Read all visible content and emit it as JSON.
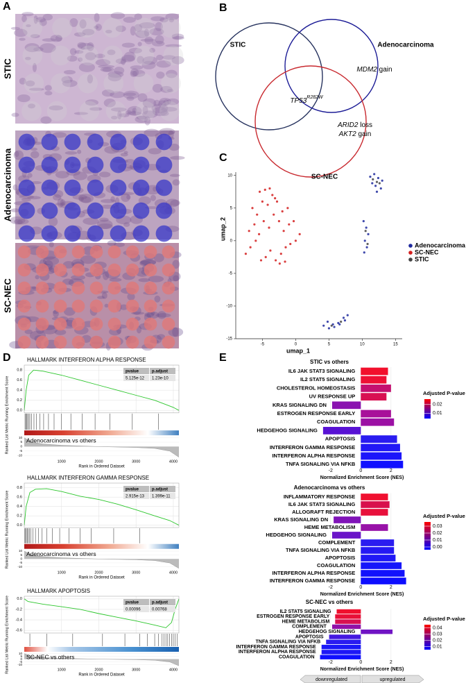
{
  "panel_labels": {
    "a": "A",
    "b": "B",
    "c": "C",
    "d": "D",
    "e": "E"
  },
  "histology": [
    "STIC",
    "Adenocarcinoma",
    "SC-NEC"
  ],
  "venn": {
    "sets": [
      {
        "name": "STIC",
        "color": "#26325e"
      },
      {
        "name": "Adenocarcinoma",
        "color": "#1c1c96"
      },
      {
        "name": "SC-NEC",
        "color": "#c8282e"
      }
    ],
    "labels": [
      {
        "gene": "MDM2",
        "event": "gain"
      },
      {
        "gene": "TP53",
        "sup": "R282W"
      },
      {
        "gene": "ARID2",
        "event": "loss"
      },
      {
        "gene": "AKT2",
        "event": "gain"
      }
    ]
  },
  "chart_data": [
    {
      "type": "scatter",
      "xlabel": "umap_1",
      "ylabel": "umap_2",
      "xlim": [
        -9,
        16
      ],
      "ylim": [
        -15,
        10.5
      ],
      "xticks": [
        -5,
        0,
        5,
        10,
        15
      ],
      "yticks": [
        -15,
        -10,
        -5,
        0,
        5,
        10
      ],
      "legend": "right",
      "series": [
        {
          "name": "Adenocarcinoma",
          "color": "#1f2a9e",
          "x": [
            11.2,
            11.8,
            12.4,
            13,
            12,
            11.5,
            12.8,
            12.2,
            10.2,
            10.6,
            10.9,
            10.4,
            10.7,
            10.3,
            4.2,
            5,
            5.8,
            6.6,
            7.4,
            7.8,
            4.8,
            5.6,
            6.4,
            7.2
          ],
          "values": [
            9.8,
            10.2,
            9.6,
            9.2,
            8.4,
            8.8,
            8,
            7.5,
            3,
            2,
            1,
            0,
            -1,
            -1.8,
            -13,
            -13.4,
            -13.2,
            -12.8,
            -12.2,
            -11.4,
            -12.4,
            -12.8,
            -12.6,
            -11.8
          ]
        },
        {
          "name": "SC-NEC",
          "color": "#d42020",
          "x": [
            -7.5,
            -6.8,
            -6,
            -5.2,
            -4.5,
            -3.8,
            -3,
            -2.2,
            -1.5,
            -0.8,
            0,
            0.6,
            -7,
            -6.2,
            -5.5,
            -4.8,
            -4,
            -3.3,
            -2.5,
            -1.8,
            -1,
            -0.3,
            -6.5,
            -5.8,
            -5,
            -4.2,
            -3.5,
            -2.8,
            -2,
            -1.2,
            -4.6,
            -3.9,
            -3.1,
            -5.4,
            -2.4,
            -1.6
          ],
          "values": [
            -2,
            -1,
            0,
            -3,
            -2.5,
            -1.5,
            -3,
            -2,
            -1,
            -0.5,
            0,
            1,
            1.5,
            2.5,
            1,
            3,
            2,
            4,
            3,
            1.5,
            2.5,
            3,
            5,
            4,
            6,
            5.5,
            7,
            6,
            4.5,
            5,
            7.8,
            8,
            6.5,
            7.5,
            -3.5,
            -3.2
          ]
        },
        {
          "name": "STIC",
          "color": "#444444",
          "x": [
            11.6,
            12.6,
            10.5,
            10.8,
            5.4,
            6.8,
            12.2
          ],
          "values": [
            9.4,
            8.8,
            1.5,
            -0.5,
            -13,
            -12.4,
            9
          ]
        }
      ]
    },
    {
      "type": "gsea",
      "title": "HALLMARK INTERFERON ALPHA RESPONSE",
      "annotation": "Adenocarcinoma vs others",
      "xlabel": "Rank in Ordered Dataset",
      "ylabel": "Ranked List Metric  Running Enrichment Score",
      "color": "#2bc62b",
      "table": {
        "header": [
          "pvalue",
          "p.adjust"
        ],
        "row": [
          "5.125e-12",
          "1.23e-10"
        ]
      },
      "xlim": [
        0,
        4150
      ],
      "xticks": [
        1000,
        2000,
        3000,
        4000
      ],
      "ylim": [
        -0.05,
        0.9
      ],
      "yticks": [
        {
          "value": 0,
          "label": "0.0"
        },
        0.2,
        0.4,
        0.6,
        0.8
      ],
      "x": [
        0,
        50,
        120,
        250,
        500,
        1000,
        1500,
        2000,
        2500,
        3000,
        3500,
        4000,
        4150
      ],
      "values": [
        0,
        0.4,
        0.7,
        0.8,
        0.78,
        0.7,
        0.6,
        0.5,
        0.4,
        0.3,
        0.2,
        0.06,
        0
      ],
      "hits": [
        20,
        40,
        60,
        90,
        120,
        150,
        200,
        260,
        330,
        420,
        520,
        650,
        800,
        1000,
        1250,
        1550,
        1900,
        2300,
        2900,
        3600
      ],
      "metric": {
        "x": [
          0,
          200,
          500,
          1000,
          2000,
          3000,
          3500,
          3900,
          4150
        ],
        "values": [
          10,
          5,
          3,
          1.5,
          0,
          -1,
          -2,
          -5,
          -12
        ],
        "ylim": [
          -13,
          12
        ],
        "yticks": [
          -10,
          -5,
          0,
          5,
          10
        ]
      }
    },
    {
      "type": "gsea",
      "title": "HALLMARK INTERFERON GAMMA RESPONSE",
      "annotation": "Adenocarcinoma vs others",
      "xlabel": "Rank in Ordered Dataset",
      "ylabel": "Ranked List Metric  Running Enrichment Score",
      "color": "#2bc62b",
      "table": {
        "header": [
          "pvalue",
          "p.adjust"
        ],
        "row": [
          "2.915e-13",
          "1.399e-11"
        ]
      },
      "xlim": [
        0,
        4150
      ],
      "xticks": [
        1000,
        2000,
        3000,
        4000
      ],
      "ylim": [
        -0.05,
        0.9
      ],
      "yticks": [
        {
          "value": 0,
          "label": "0.0"
        },
        0.2,
        0.4,
        0.6,
        0.8
      ],
      "x": [
        0,
        50,
        150,
        300,
        600,
        1000,
        1500,
        2000,
        2500,
        3000,
        3500,
        3900,
        4150
      ],
      "values": [
        0,
        0.4,
        0.7,
        0.77,
        0.78,
        0.72,
        0.62,
        0.55,
        0.45,
        0.33,
        0.2,
        0.1,
        0
      ],
      "hits": [
        15,
        35,
        55,
        80,
        110,
        140,
        180,
        230,
        300,
        380,
        480,
        600,
        750,
        950,
        1200,
        1500,
        1800,
        2400,
        3100
      ],
      "metric": {
        "x": [
          0,
          200,
          500,
          1000,
          2000,
          3000,
          3500,
          3900,
          4150
        ],
        "values": [
          10,
          5,
          3,
          1.5,
          0,
          -1,
          -2,
          -5,
          -12
        ],
        "ylim": [
          -13,
          12
        ],
        "yticks": [
          -10,
          -5,
          0,
          5,
          10
        ]
      }
    },
    {
      "type": "gsea",
      "title": "HALLMARK APOPTOSIS",
      "annotation": "SC-NEC vs others",
      "xlabel": "Rank in Ordered Dataset",
      "ylabel": "Ranked List Metric  Running Enrichment Score",
      "color": "#2bc62b",
      "table": {
        "header": [
          "pvalue",
          "p.adjust"
        ],
        "row": [
          "0.00096",
          "0.00768"
        ]
      },
      "xlim": [
        0,
        4150
      ],
      "xticks": [
        1000,
        2000,
        3000,
        4000
      ],
      "ylim": [
        -0.65,
        0.05
      ],
      "yticks": [
        -0.6,
        -0.4,
        -0.2,
        {
          "value": 0,
          "label": "0.0"
        }
      ],
      "x": [
        0,
        100,
        500,
        1000,
        1500,
        2000,
        2500,
        3000,
        3500,
        3800,
        3950,
        4050,
        4150
      ],
      "values": [
        0,
        -0.05,
        -0.1,
        -0.15,
        -0.2,
        -0.28,
        -0.35,
        -0.42,
        -0.5,
        -0.55,
        -0.45,
        -0.2,
        0
      ],
      "hits": [
        150,
        600,
        1300,
        2100,
        2700,
        3100,
        3300,
        3500,
        3600,
        3700,
        3750,
        3800,
        3850,
        3900,
        3950,
        4000,
        4050,
        4100
      ],
      "metric": {
        "x": [
          0,
          200,
          500,
          1000,
          2000,
          3000,
          3500,
          3900,
          4150
        ],
        "values": [
          10,
          5,
          3,
          1.5,
          0,
          -1,
          -2,
          -5,
          -12
        ],
        "ylim": [
          -13,
          12
        ],
        "yticks": [
          -10,
          -5,
          0,
          5,
          10
        ]
      }
    },
    {
      "type": "barh",
      "title": "STIC vs others",
      "xlabel": "Normalized Enrichment Score (NES)",
      "xlim": [
        -3,
        3.2
      ],
      "xticks": [
        -2,
        0,
        2
      ],
      "categories": [
        "IL6 JAK STAT3 SIGNALING",
        "IL2 STAT5 SIGNALING",
        "CHOLESTEROL HOMEOSTASIS",
        "UV RESPONSE UP",
        "KRAS SIGNALING DN",
        "ESTROGEN RESPONSE EARLY",
        "COAGULATION",
        "HEDGEHOG SIGNALING",
        "APOPTOSIS",
        "INTERFERON GAMMA RESPONSE",
        "INTERFERON ALPHA RESPONSE",
        "TNFA SIGNALING VIA NFKB"
      ],
      "values": [
        1.8,
        1.7,
        2.0,
        1.7,
        -1.9,
        2.0,
        2.2,
        -2.5,
        2.4,
        2.6,
        2.7,
        2.8
      ],
      "colors": [
        "#f2102c",
        "#ee1034",
        "#c41070",
        "#d81052",
        "#8a12b0",
        "#a8109a",
        "#9c10a4",
        "#5812d4",
        "#2a1cf0",
        "#2218f6",
        "#1c16fa",
        "#1010ff"
      ],
      "colorbar": {
        "title": "Adjusted P-value",
        "lim": [
          0.004,
          0.026
        ],
        "ticks": [
          0.02,
          0.01
        ],
        "colors": [
          "#ff0000",
          "#0000ff"
        ]
      }
    },
    {
      "type": "barh",
      "title": "Adenocarcinoma vs others",
      "xlabel": "Normalized Enrichment Score (NES)",
      "xlim": [
        -3,
        3.2
      ],
      "xticks": [
        -2,
        0,
        2
      ],
      "categories": [
        "INFLAMMATORY RESPONSE",
        "IL6 JAK STAT3 SIGNALING",
        "ALLOGRAFT REJECTION",
        "KRAS SIGNALING DN",
        "HEME METABOLISM",
        "HEDGEHOG SIGNALING",
        "COMPLEMENT",
        "TNFA SIGNALING VIA NFKB",
        "APOPTOSIS",
        "COAGULATION",
        "INTERFERON ALPHA RESPONSE",
        "INTERFERON GAMMA RESPONSE"
      ],
      "values": [
        1.8,
        1.9,
        1.8,
        -1.8,
        1.8,
        -1.9,
        2.2,
        2.2,
        2.3,
        2.7,
        2.9,
        3.0
      ],
      "colors": [
        "#f01030",
        "#d8104c",
        "#e8103c",
        "#8014b8",
        "#9812a8",
        "#6a14c8",
        "#2a1cf0",
        "#2418f4",
        "#2018f6",
        "#1616fa",
        "#1212fc",
        "#0e0eff"
      ],
      "colorbar": {
        "title": "Adjusted P-value",
        "lim": [
          -0.004,
          0.036
        ],
        "ticks": [
          0.03,
          0.02,
          0.01,
          {
            "value": 0,
            "label": "0.00"
          }
        ],
        "colors": [
          "#ff0000",
          "#0000ff"
        ]
      }
    },
    {
      "type": "barh",
      "title": "SC-NEC vs others",
      "xlabel": "Normalized Enrichment Score (NES)",
      "xlim": [
        -3,
        3.2
      ],
      "xticks": [
        -2,
        0,
        2
      ],
      "categories": [
        "IL2 STAT5 SIGNALING",
        "ESTROGEN RESPONSE EARLY",
        "HEME METABOLISM",
        "COMPLEMENT",
        "HEDGEHOG SIGNALING",
        "APOPTOSIS",
        "TNFA SIGNALING VIA NFKB",
        "INTERFERON GAMMA RESPONSE",
        "INTERFERON ALPHA RESPONSE",
        "COAGULATION"
      ],
      "values": [
        -1.6,
        -1.7,
        -1.7,
        -1.9,
        2.1,
        -2.1,
        -2.3,
        -2.6,
        -2.6,
        -2.7
      ],
      "colors": [
        "#f0102e",
        "#e81038",
        "#d81050",
        "#9012a8",
        "#7014c4",
        "#4418e0",
        "#2a1cf0",
        "#1a18f8",
        "#1e18f6",
        "#1010ff"
      ],
      "colorbar": {
        "title": "Adjusted P-value",
        "lim": [
          0.005,
          0.045
        ],
        "ticks": [
          0.04,
          0.03,
          0.02,
          0.01
        ],
        "colors": [
          "#ff0000",
          "#0000ff"
        ]
      },
      "annotations": [
        "downregulated",
        "upregulated"
      ]
    }
  ]
}
